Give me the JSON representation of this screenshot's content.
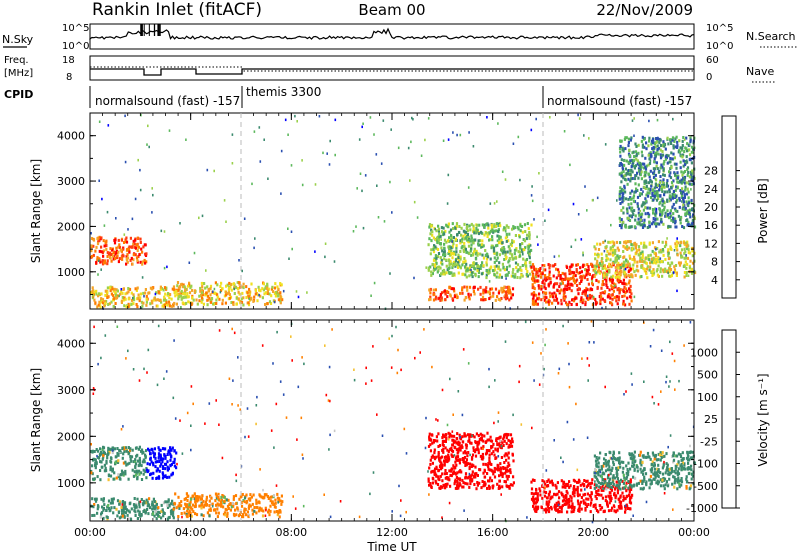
{
  "header": {
    "radar": "Rankin Inlet (fitACF)",
    "beam": "Beam 00",
    "date": "22/Nov/2009"
  },
  "noise_panel": {
    "left_label": "N.Sky",
    "right_label": "N.Search",
    "left_ticks": [
      "10^5",
      "10^0"
    ],
    "right_ticks": [
      "10^5",
      "10^0"
    ]
  },
  "freq_panel": {
    "left_label_1": "Freq.",
    "left_label_2": "[MHz]",
    "right_label": "Nave",
    "left_ticks": [
      "18",
      "8"
    ],
    "right_ticks": [
      "60",
      "0"
    ]
  },
  "cpid": {
    "label": "CPID",
    "modes": [
      {
        "name": "normalsound (fast) -157",
        "start_hour": 0
      },
      {
        "name": "themis 3300",
        "start_hour": 6
      },
      {
        "name": "normalsound (fast) -157",
        "start_hour": 18
      }
    ]
  },
  "chart_data": [
    {
      "type": "heatmap",
      "name": "power",
      "ylabel": "Slant Range [km]",
      "xlabel": "",
      "x_ticks": [
        "00:00",
        "04:00",
        "08:00",
        "12:00",
        "16:00",
        "20:00",
        "00:00"
      ],
      "y_ticks": [
        1000,
        2000,
        3000,
        4000
      ],
      "xlim_hours": [
        0,
        24
      ],
      "ylim_km": [
        180,
        4500
      ],
      "colorbar": {
        "label": "Power [dB]",
        "tick_labels": [
          "4",
          "8",
          "12",
          "16",
          "20",
          "24",
          "28"
        ],
        "colors": [
          "#0000ff",
          "#2a4fb0",
          "#3b8a6e",
          "#5cb85c",
          "#9ad04b",
          "#f0e020",
          "#f4a428",
          "#ff7a00",
          "#ff3a10",
          "#ff0000"
        ]
      },
      "regions": [
        {
          "hours": [
            0.0,
            2.2
          ],
          "km": [
            1200,
            1800
          ],
          "value": 26
        },
        {
          "hours": [
            0.0,
            3.3
          ],
          "km": [
            250,
            700
          ],
          "value": 20
        },
        {
          "hours": [
            3.3,
            7.6
          ],
          "km": [
            300,
            800
          ],
          "value": 20
        },
        {
          "hours": [
            13.4,
            16.8
          ],
          "km": [
            400,
            700
          ],
          "value": 26
        },
        {
          "hours": [
            13.4,
            17.5
          ],
          "km": [
            900,
            2100
          ],
          "value": 14
        },
        {
          "hours": [
            17.5,
            21.5
          ],
          "km": [
            300,
            1200
          ],
          "value": 28
        },
        {
          "hours": [
            20.0,
            24.0
          ],
          "km": [
            900,
            1700
          ],
          "value": 18
        },
        {
          "hours": [
            21.0,
            24.0
          ],
          "km": [
            2000,
            4000
          ],
          "value": 10
        }
      ]
    },
    {
      "type": "heatmap",
      "name": "velocity",
      "ylabel": "Slant Range [km]",
      "xlabel": "Time UT",
      "x_ticks": [
        "00:00",
        "04:00",
        "08:00",
        "12:00",
        "16:00",
        "20:00",
        "00:00"
      ],
      "y_ticks": [
        1000,
        2000,
        3000,
        4000
      ],
      "xlim_hours": [
        0,
        24
      ],
      "ylim_km": [
        180,
        4500
      ],
      "colorbar": {
        "label": "Velocity [m s⁻¹]",
        "tick_labels": [
          "1000",
          "500",
          "100",
          "25",
          "-25",
          "-100",
          "-500",
          "-1000"
        ],
        "colors": [
          "#0000ff",
          "#2a4fb0",
          "#3b8a6e",
          "#5cb85c",
          "#c8c8c8",
          "#f4c030",
          "#ff8000",
          "#ff0000"
        ]
      },
      "regions": [
        {
          "hours": [
            0.0,
            2.2
          ],
          "km": [
            1100,
            1800
          ],
          "value": 100
        },
        {
          "hours": [
            2.2,
            3.4
          ],
          "km": [
            1100,
            1800
          ],
          "value": 1000
        },
        {
          "hours": [
            0.0,
            3.3
          ],
          "km": [
            250,
            700
          ],
          "value": 100
        },
        {
          "hours": [
            3.3,
            7.6
          ],
          "km": [
            300,
            800
          ],
          "value": -100
        },
        {
          "hours": [
            13.4,
            16.8
          ],
          "km": [
            900,
            2100
          ],
          "value": -500
        },
        {
          "hours": [
            17.5,
            21.5
          ],
          "km": [
            400,
            1100
          ],
          "value": -500
        },
        {
          "hours": [
            20.0,
            24.0
          ],
          "km": [
            900,
            1700
          ],
          "value": 100
        }
      ]
    }
  ]
}
